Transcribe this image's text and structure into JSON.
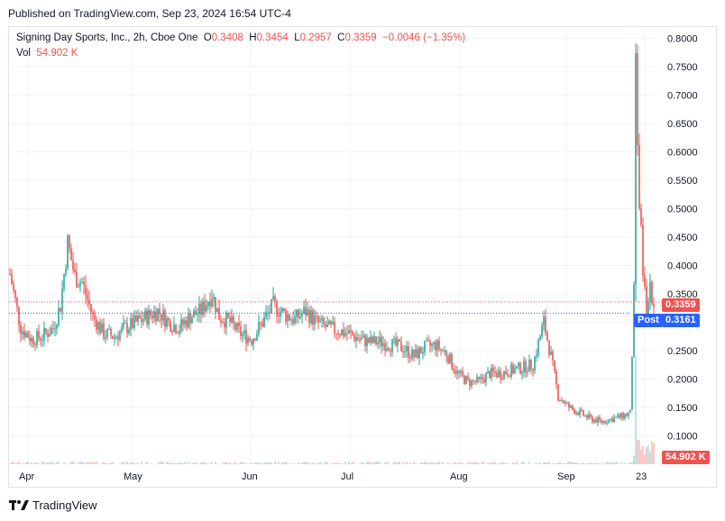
{
  "header": {
    "published": "Published on TradingView.com, Sep 23, 2024 16:54 UTC-4"
  },
  "legend": {
    "symbol": "Signing Day Sports, Inc., 2h, Cboe One",
    "o_label": "O",
    "o": "0.3408",
    "h_label": "H",
    "h": "0.3454",
    "l_label": "L",
    "l": "0.2957",
    "c_label": "C",
    "c": "0.3359",
    "change": "−0.0046 (−1.35%)",
    "vol_label": "Vol",
    "vol": "54.902 K"
  },
  "tags": {
    "last": "0.3359",
    "post_label": "Post",
    "post": "0.3161",
    "vol": "54.902 K"
  },
  "footer": {
    "brand": "TradingView"
  },
  "colors": {
    "up": "#26a69a",
    "down": "#ef5350",
    "post": "#2962ff",
    "grid": "#f0f3fa"
  },
  "chart_data": {
    "type": "candlestick",
    "ylim": [
      0.05,
      0.82
    ],
    "y_ticks": [
      0.1,
      0.15,
      0.2,
      0.25,
      0.3,
      0.35,
      0.4,
      0.45,
      0.5,
      0.55,
      0.6,
      0.65,
      0.7,
      0.75,
      0.8
    ],
    "y_tick_labels": [
      "0.1000",
      "0.1500",
      "0.2000",
      "0.2500",
      "0.3000",
      "0.3500",
      "0.4000",
      "0.4500",
      "0.5000",
      "0.5500",
      "0.6000",
      "0.6500",
      "0.7000",
      "0.7500",
      "0.8000"
    ],
    "x_ticks": [
      "Apr",
      "May",
      "Jun",
      "Jul",
      "Aug",
      "Sep",
      "23"
    ],
    "grid": true,
    "price_path": [
      [
        0,
        0.385
      ],
      [
        6,
        0.29
      ],
      [
        12,
        0.27
      ],
      [
        18,
        0.275
      ],
      [
        24,
        0.29
      ],
      [
        28,
        0.33
      ],
      [
        32,
        0.44
      ],
      [
        36,
        0.38
      ],
      [
        40,
        0.37
      ],
      [
        46,
        0.31
      ],
      [
        52,
        0.28
      ],
      [
        58,
        0.275
      ],
      [
        64,
        0.29
      ],
      [
        70,
        0.3
      ],
      [
        76,
        0.31
      ],
      [
        82,
        0.32
      ],
      [
        88,
        0.3
      ],
      [
        94,
        0.29
      ],
      [
        100,
        0.31
      ],
      [
        106,
        0.32
      ],
      [
        112,
        0.35
      ],
      [
        116,
        0.31
      ],
      [
        122,
        0.3
      ],
      [
        128,
        0.28
      ],
      [
        134,
        0.27
      ],
      [
        140,
        0.3
      ],
      [
        146,
        0.33
      ],
      [
        152,
        0.315
      ],
      [
        158,
        0.305
      ],
      [
        164,
        0.32
      ],
      [
        170,
        0.3
      ],
      [
        176,
        0.29
      ],
      [
        182,
        0.285
      ],
      [
        188,
        0.28
      ],
      [
        194,
        0.27
      ],
      [
        200,
        0.265
      ],
      [
        206,
        0.265
      ],
      [
        212,
        0.26
      ],
      [
        218,
        0.255
      ],
      [
        224,
        0.24
      ],
      [
        230,
        0.255
      ],
      [
        236,
        0.26
      ],
      [
        242,
        0.245
      ],
      [
        248,
        0.21
      ],
      [
        254,
        0.195
      ],
      [
        260,
        0.195
      ],
      [
        266,
        0.21
      ],
      [
        272,
        0.21
      ],
      [
        278,
        0.215
      ],
      [
        284,
        0.22
      ],
      [
        290,
        0.225
      ],
      [
        296,
        0.3
      ],
      [
        300,
        0.24
      ],
      [
        304,
        0.17
      ],
      [
        310,
        0.15
      ],
      [
        316,
        0.14
      ],
      [
        322,
        0.13
      ],
      [
        328,
        0.125
      ],
      [
        334,
        0.13
      ],
      [
        340,
        0.135
      ],
      [
        344,
        0.14
      ],
      [
        346,
        0.35
      ],
      [
        347,
        0.74
      ],
      [
        348,
        0.62
      ],
      [
        349,
        0.5
      ],
      [
        351,
        0.4
      ],
      [
        353,
        0.3
      ],
      [
        355,
        0.37
      ],
      [
        357,
        0.33
      ]
    ],
    "volume_spike_index": 347
  }
}
